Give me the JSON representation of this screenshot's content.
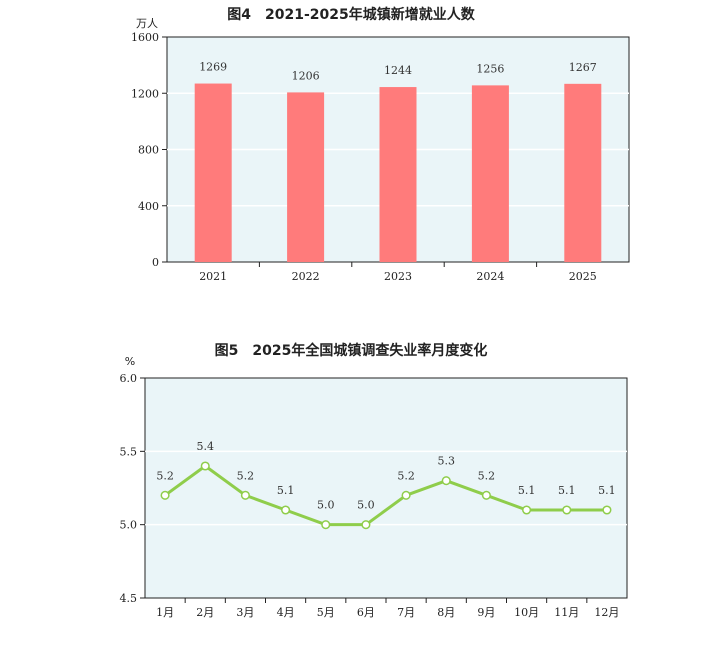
{
  "chart_data": [
    {
      "type": "bar",
      "title": "图4　2021-2025年城镇新增就业人数",
      "ylabel": "万人",
      "categories": [
        "2021",
        "2022",
        "2023",
        "2024",
        "2025"
      ],
      "values": [
        1269,
        1206,
        1244,
        1256,
        1267
      ],
      "ylim": [
        0,
        1600
      ],
      "yticks": [
        0,
        400,
        800,
        1200,
        1600
      ],
      "bar_color": "#ff7b7b",
      "plot_bg": "#eaf5f8",
      "grid": true
    },
    {
      "type": "line",
      "title": "图5　2025年全国城镇调查失业率月度变化",
      "ylabel": "%",
      "categories": [
        "1月",
        "2月",
        "3月",
        "4月",
        "5月",
        "6月",
        "7月",
        "8月",
        "9月",
        "10月",
        "11月",
        "12月"
      ],
      "values": [
        5.2,
        5.4,
        5.2,
        5.1,
        5.0,
        5.0,
        5.2,
        5.3,
        5.2,
        5.1,
        5.1,
        5.1
      ],
      "value_labels": [
        "5.2",
        "5.4",
        "5.2",
        "5.1",
        "5.0",
        "5.0",
        "5.2",
        "5.3",
        "5.2",
        "5.1",
        "5.1",
        "5.1"
      ],
      "ylim": [
        4.5,
        6.0
      ],
      "yticks": [
        "4.5",
        "5.0",
        "5.5",
        "6.0"
      ],
      "line_color": "#8fcd4b",
      "plot_bg": "#eaf5f8",
      "grid": true
    }
  ]
}
